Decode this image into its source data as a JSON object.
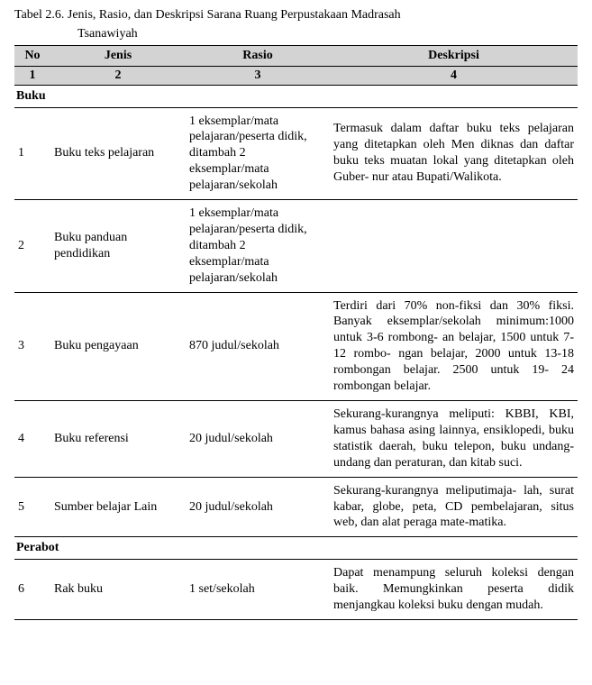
{
  "caption_line1": "Tabel 2.6. Jenis, Rasio, dan Deskripsi Sarana Ruang Perpustakaan Madrasah",
  "caption_line2": "Tsanawiyah",
  "headers": {
    "no": "No",
    "jenis": "Jenis",
    "rasio": "Rasio",
    "deskripsi": "Deskripsi"
  },
  "subhead": {
    "c1": "1",
    "c2": "2",
    "c3": "3",
    "c4": "4"
  },
  "section_buku": "Buku",
  "section_perabot": "Perabot",
  "rows": {
    "r1": {
      "no": "1",
      "jenis": "Buku teks pelajaran",
      "rasio": "1 eksemplar/mata pelajaran/peserta didik, ditambah 2 eksemplar/mata pelajaran/sekolah",
      "desk": "Termasuk dalam daftar buku teks pelajaran yang ditetapkan oleh Men diknas dan daftar buku teks muatan lokal yang ditetapkan oleh Guber- nur atau Bupati/Walikota."
    },
    "r2": {
      "no": "2",
      "jenis": "Buku panduan pendidikan",
      "rasio": "1 eksemplar/mata pelajaran/peserta didik, ditambah 2 eksemplar/mata pelajaran/sekolah",
      "desk": ""
    },
    "r3": {
      "no": "3",
      "jenis": "Buku pengayaan",
      "rasio": "870 judul/sekolah",
      "desk": "Terdiri dari 70% non-fiksi dan 30% fiksi. Banyak eksemplar/sekolah minimum:1000 untuk 3-6 rombong- an belajar, 1500 untuk 7-12 rombo- ngan belajar, 2000 untuk 13-18 rombongan belajar. 2500 untuk 19- 24 rombongan belajar."
    },
    "r4": {
      "no": "4",
      "jenis": "Buku referensi",
      "rasio": "20 judul/sekolah",
      "desk": "Sekurang-kurangnya meliputi: KBBI, KBI, kamus bahasa asing lainnya, ensiklopedi, buku statistik daerah, buku telepon, buku undang- undang dan peraturan, dan kitab suci."
    },
    "r5": {
      "no": "5",
      "jenis": "Sumber belajar Lain",
      "rasio": "20 judul/sekolah",
      "desk": "Sekurang-kurangnya meliputimaja- lah, surat kabar, globe, peta, CD pembelajaran, situs web, dan alat peraga mate-matika."
    },
    "r6": {
      "no": "6",
      "jenis": "Rak buku",
      "rasio": "1 set/sekolah",
      "desk": "Dapat menampung seluruh koleksi dengan baik. Memungkinkan peserta didik menjangkau koleksi buku dengan mudah."
    }
  }
}
